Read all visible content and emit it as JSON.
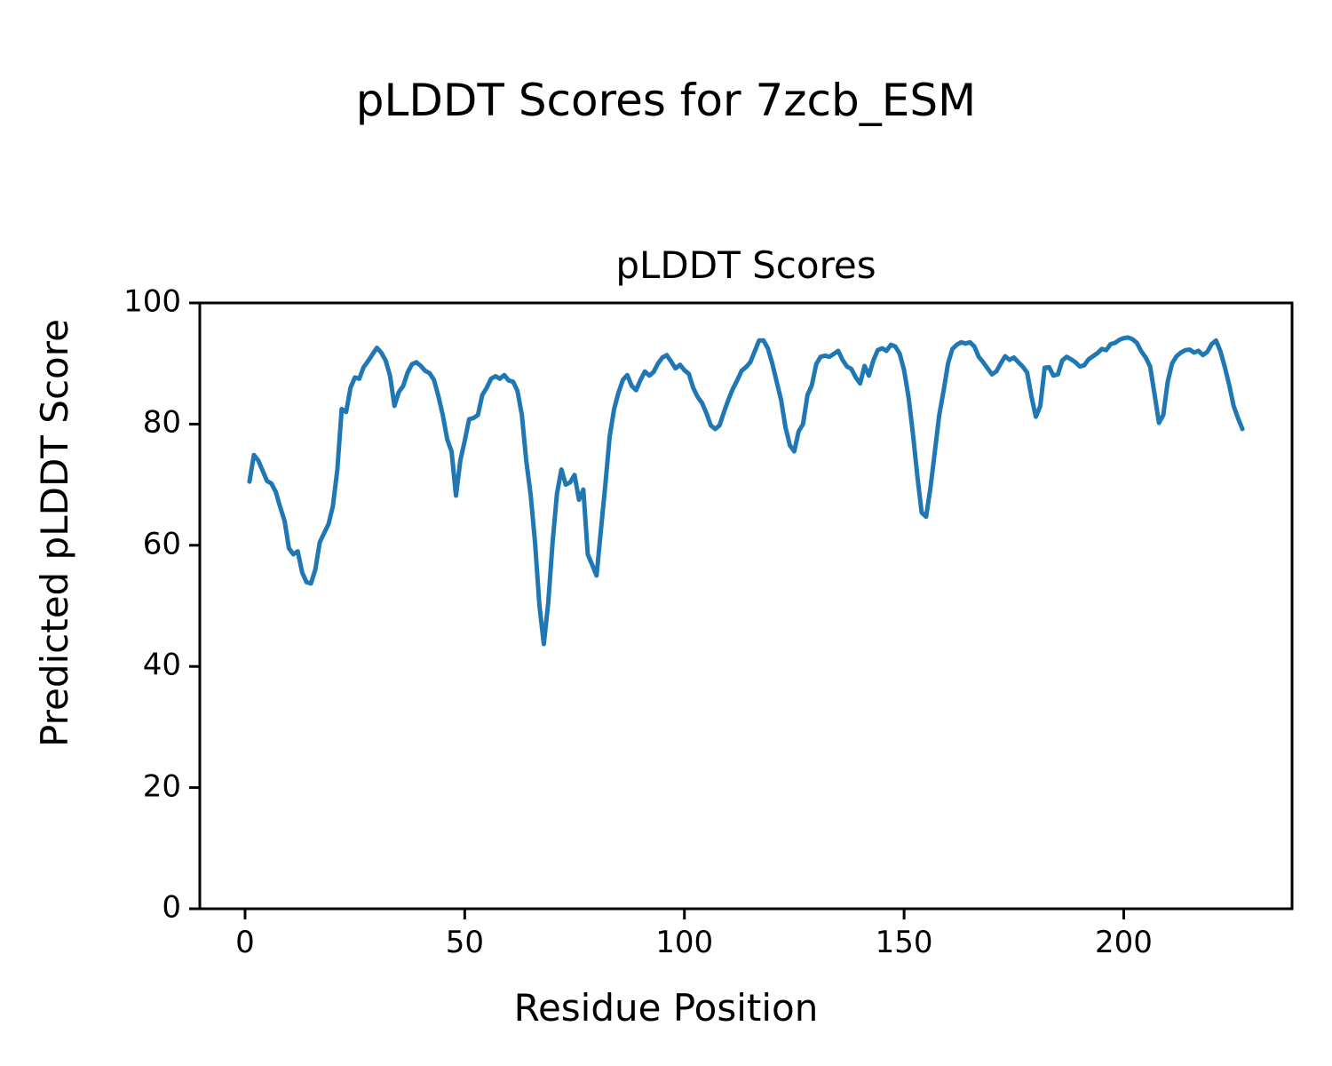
{
  "figure": {
    "suptitle": "pLDDT Scores for 7zcb_ESM",
    "background_color": "#ffffff",
    "text_color": "#000000"
  },
  "chart_data": {
    "type": "line",
    "title": "pLDDT Scores",
    "xlabel": "Residue Position",
    "ylabel": "Predicted pLDDT Score",
    "series_name": "pLDDT",
    "line_color": "#1f77b4",
    "line_width": 5,
    "grid": false,
    "legend": "none",
    "xlim": [
      -10.3,
      238.3
    ],
    "ylim": [
      0,
      100
    ],
    "x_ticks": [
      0,
      50,
      100,
      150,
      200
    ],
    "y_ticks": [
      0,
      20,
      40,
      60,
      80,
      100
    ],
    "x_range": [
      1,
      227
    ],
    "values": [
      70.5,
      74.9,
      74.0,
      72.3,
      70.6,
      70.2,
      68.8,
      66.3,
      64.0,
      59.5,
      58.5,
      59.0,
      55.5,
      53.9,
      53.7,
      56.0,
      60.5,
      62.0,
      63.5,
      66.5,
      72.5,
      82.5,
      82.0,
      86.0,
      87.7,
      87.5,
      89.4,
      90.4,
      91.5,
      92.6,
      91.8,
      90.5,
      88.0,
      83.0,
      85.3,
      86.3,
      88.5,
      89.9,
      90.2,
      89.6,
      88.8,
      88.4,
      87.3,
      84.6,
      81.5,
      77.5,
      75.5,
      68.2,
      74.0,
      77.2,
      80.8,
      81.0,
      81.5,
      84.8,
      86.0,
      87.5,
      87.9,
      87.5,
      88.1,
      87.2,
      87.0,
      85.5,
      81.5,
      74.0,
      68.3,
      60.5,
      50.0,
      43.7,
      50.5,
      60.5,
      68.5,
      72.5,
      70.0,
      70.4,
      71.6,
      67.5,
      69.2,
      58.5,
      56.8,
      55.0,
      62.5,
      70.0,
      78.0,
      82.5,
      85.2,
      87.3,
      88.1,
      86.3,
      85.6,
      87.3,
      88.7,
      88.0,
      88.6,
      90.0,
      91.0,
      91.4,
      90.3,
      89.2,
      89.8,
      88.9,
      88.3,
      86.0,
      84.5,
      83.5,
      81.8,
      79.8,
      79.2,
      79.8,
      82.0,
      84.0,
      85.8,
      87.2,
      88.8,
      89.4,
      90.2,
      92.0,
      93.8,
      93.8,
      92.5,
      90.0,
      87.0,
      84.0,
      79.5,
      76.5,
      75.5,
      78.8,
      80.0,
      84.8,
      86.4,
      89.9,
      91.1,
      91.3,
      91.1,
      91.6,
      92.1,
      90.6,
      89.5,
      89.1,
      87.7,
      86.7,
      89.6,
      88.0,
      90.5,
      92.2,
      92.5,
      92.1,
      93.1,
      92.8,
      91.6,
      88.9,
      84.5,
      78.5,
      71.5,
      65.4,
      64.7,
      69.5,
      75.5,
      81.5,
      85.5,
      90.0,
      92.4,
      93.1,
      93.5,
      93.3,
      93.5,
      92.8,
      91.1,
      90.2,
      89.2,
      88.2,
      88.7,
      90.0,
      91.2,
      90.6,
      91.0,
      90.2,
      89.5,
      88.5,
      84.5,
      81.2,
      83.0,
      89.3,
      89.4,
      88.0,
      88.2,
      90.5,
      91.1,
      90.7,
      90.2,
      89.5,
      89.7,
      90.7,
      91.2,
      91.7,
      92.4,
      92.2,
      93.2,
      93.4,
      93.9,
      94.2,
      94.3,
      94.0,
      93.4,
      92.0,
      91.0,
      89.5,
      85.0,
      80.2,
      81.5,
      87.0,
      90.0,
      91.2,
      91.8,
      92.2,
      92.3,
      91.8,
      92.1,
      91.4,
      91.9,
      93.2,
      93.8,
      92.0,
      89.4,
      86.5,
      83.0,
      81.0,
      79.2
    ]
  }
}
